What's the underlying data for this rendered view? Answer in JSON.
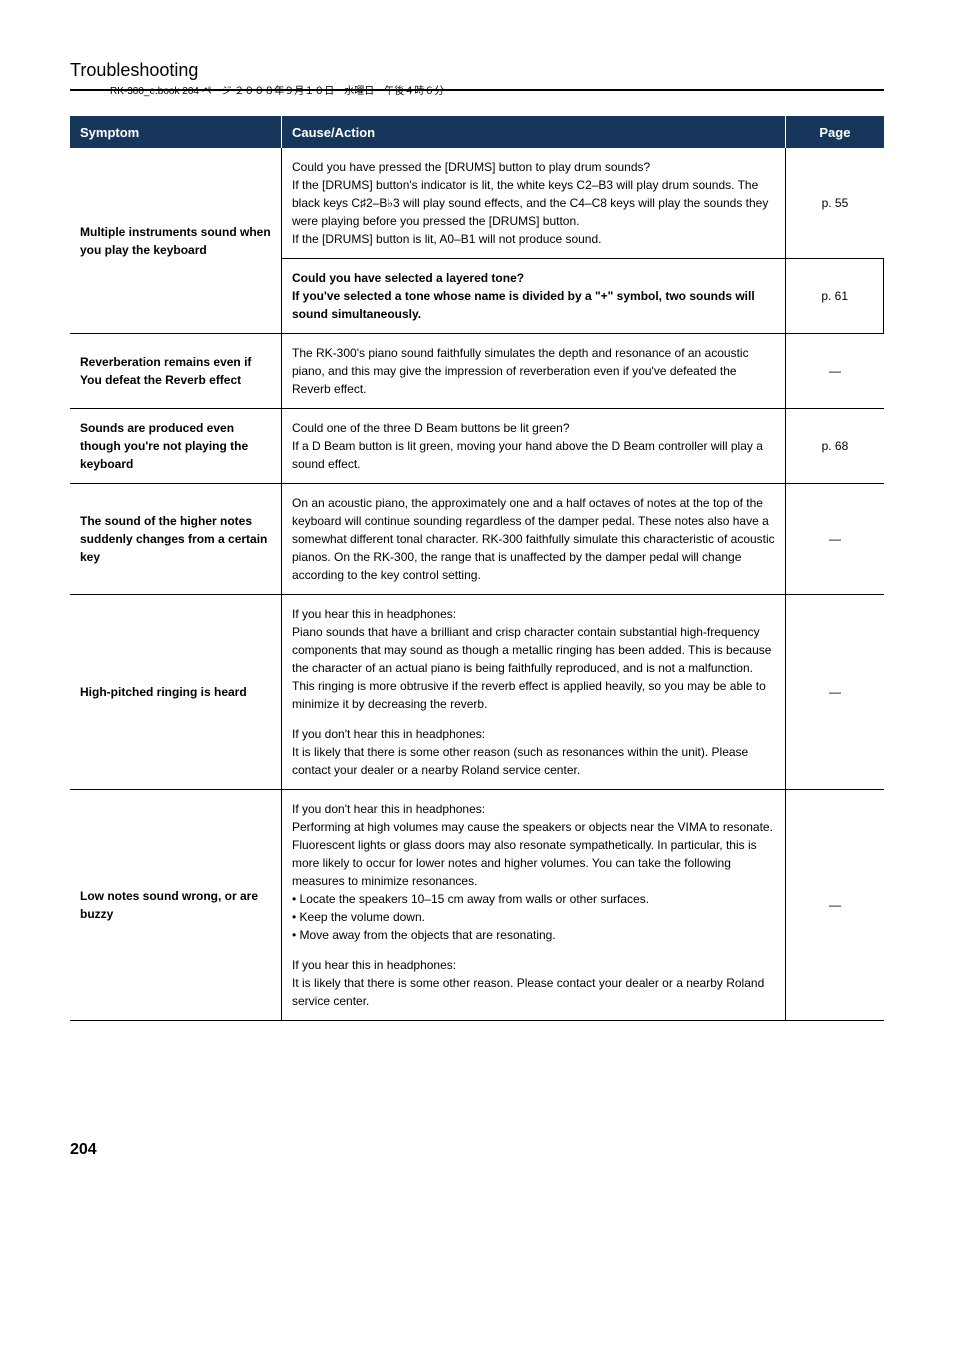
{
  "print_info": "RK-300_e.book  204 ページ  ２００８年９月１０日　水曜日　午後４時６分",
  "section_title": "Troubleshooting",
  "table": {
    "headers": [
      "Symptom",
      "Cause/Action",
      "Page"
    ],
    "colors": {
      "header_bg": "#16365c",
      "header_text": "#ffffff",
      "border": "#000000",
      "body_text": "#000000"
    },
    "rows": [
      {
        "symptom": "Multiple instruments sound when you play the keyboard",
        "rowspan": 2,
        "causes": [
          {
            "text": "Could you have pressed the [DRUMS] button to play drum sounds?\nIf the [DRUMS] button's indicator is lit, the white keys C2–B3 will play drum sounds. The black keys C♯2–B♭3 will play sound effects, and the C4–C8 keys will play the sounds they were playing before you pressed the [DRUMS] button.\nIf the [DRUMS] button is lit, A0–B1 will not produce sound.",
            "page": "p. 55"
          },
          {
            "text": "Could you have selected a layered tone?\nIf you've selected a tone whose name is divided by a \"+\" symbol, two sounds will sound simultaneously.",
            "page": "p. 61"
          }
        ]
      },
      {
        "symptom": "Reverberation remains even if You defeat the Reverb effect",
        "causes": [
          {
            "text": "The RK-300's piano sound faithfully simulates the depth and resonance of an acoustic piano, and this may give the impression of reverberation even if you've defeated the Reverb effect.",
            "page": "—"
          }
        ]
      },
      {
        "symptom": "Sounds are produced even though you're not playing the keyboard",
        "causes": [
          {
            "text": "Could one of the three D Beam buttons be lit green?\nIf a D Beam button is lit green, moving your hand above the D Beam controller will play a sound effect.",
            "page": "p. 68"
          }
        ]
      },
      {
        "symptom": "The sound of the higher notes suddenly changes from a certain key",
        "causes": [
          {
            "text": "On an acoustic piano, the approximately one and a half octaves of notes at the top of the keyboard will continue sounding regardless of the damper pedal. These notes also have a somewhat different tonal character. RK-300 faithfully simulate this characteristic of acoustic pianos. On the RK-300, the range that is unaffected by the damper pedal will change according to the key control setting.",
            "page": "—"
          }
        ]
      },
      {
        "symptom": "High-pitched ringing is heard",
        "causes": [
          {
            "text_parts": [
              "If you hear this in headphones:\nPiano sounds that have a brilliant and crisp character contain substantial high-frequency components that may sound as though a metallic ringing has been added. This is because the character of an actual piano is being faithfully reproduced, and is not a malfunction. This ringing is more obtrusive if the reverb effect is applied heavily, so you may be able to minimize it by decreasing the reverb.",
              "If you don't hear this in headphones:\nIt is likely that there is some other reason (such as resonances within the unit). Please contact your dealer or a nearby Roland service center."
            ],
            "page": "—"
          }
        ]
      },
      {
        "symptom": "Low notes sound wrong, or are buzzy",
        "causes": [
          {
            "text_intro": "If you don't hear this in headphones:\nPerforming at high volumes may cause the speakers or objects near the VIMA to resonate. Fluorescent lights or glass doors may also resonate sympathetically. In particular, this is more likely to occur for lower notes and higher volumes. You can take the following measures to minimize resonances.",
            "bullets": [
              "Locate the speakers 10–15 cm away from walls or other surfaces.",
              "Keep the volume down.",
              "Move away from the objects that are resonating."
            ],
            "text_outro": "If you hear this in headphones:\nIt is likely that there is some other reason. Please contact your dealer or a nearby Roland service center.",
            "page": "—"
          }
        ]
      }
    ]
  },
  "page_number": "204"
}
